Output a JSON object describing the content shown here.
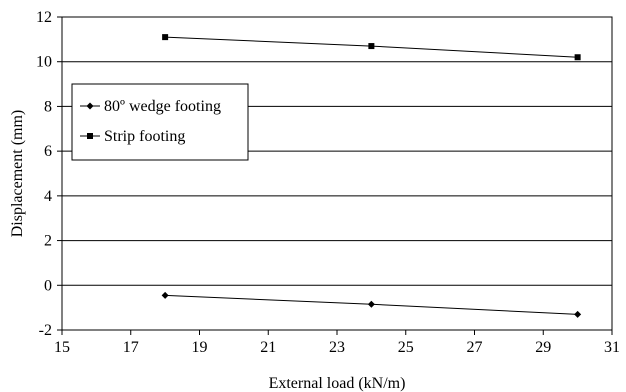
{
  "chart_data": {
    "type": "line",
    "title": "",
    "xlabel": "External load (kN/m)",
    "ylabel": "Displacement (mm)",
    "xlim": [
      15,
      31
    ],
    "ylim": [
      -2,
      12
    ],
    "xticks": [
      15,
      17,
      19,
      21,
      23,
      25,
      27,
      29,
      31
    ],
    "yticks": [
      -2,
      0,
      2,
      4,
      6,
      8,
      10,
      12
    ],
    "grid": "horizontal",
    "legend_position": "left",
    "series": [
      {
        "name": "80º wedge footing",
        "marker": "diamond",
        "color": "#000000",
        "x": [
          18,
          24,
          30
        ],
        "y": [
          -0.45,
          -0.85,
          -1.3
        ]
      },
      {
        "name": "Strip footing",
        "marker": "square",
        "color": "#000000",
        "x": [
          18,
          24,
          30
        ],
        "y": [
          11.1,
          10.7,
          10.2
        ]
      }
    ]
  }
}
